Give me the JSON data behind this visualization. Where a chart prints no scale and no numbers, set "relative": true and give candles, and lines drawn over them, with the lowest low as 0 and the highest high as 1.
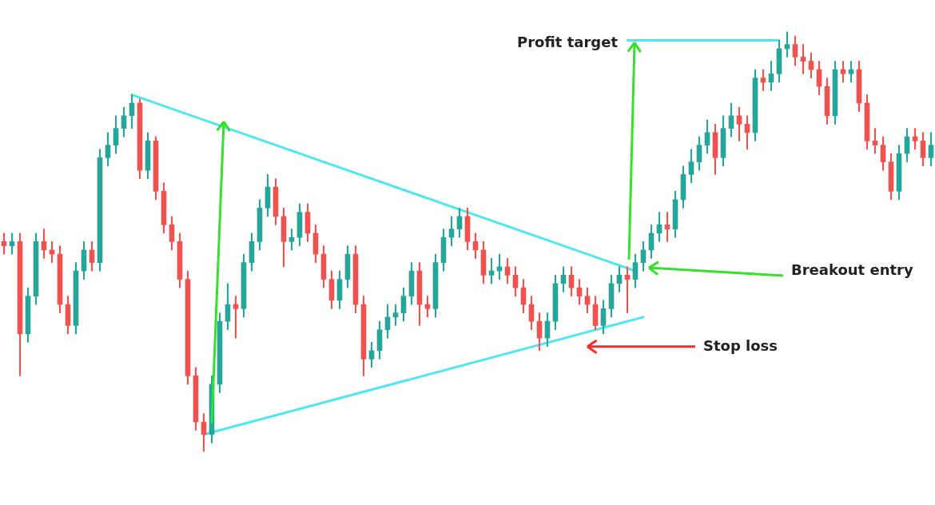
{
  "chart_data": {
    "type": "candlestick",
    "relative": true,
    "marker": "none",
    "categories": [
      null,
      null,
      null,
      null,
      null,
      null,
      null,
      null,
      null,
      null,
      null,
      null,
      null,
      null,
      null,
      null,
      null,
      null,
      null,
      null,
      null,
      null,
      null,
      null,
      null,
      null,
      null,
      null,
      null,
      null,
      null,
      null,
      null,
      null,
      null,
      null,
      null,
      null,
      null,
      null,
      null,
      null,
      null,
      null,
      null,
      null,
      null,
      null,
      null,
      null,
      null,
      null,
      null,
      null,
      null,
      null,
      null,
      null,
      null,
      null,
      null,
      null,
      null,
      null,
      null,
      null,
      null,
      null,
      null,
      null,
      null,
      null,
      null,
      null,
      null,
      null,
      null,
      null,
      null,
      null,
      null,
      null,
      null,
      null,
      null,
      null,
      null,
      null,
      null,
      null,
      null,
      null,
      null,
      null,
      null,
      null,
      null,
      null,
      null,
      null,
      null,
      null,
      null,
      null,
      null,
      null,
      null,
      null,
      null,
      null,
      null,
      null,
      null,
      null,
      null,
      null,
      null
    ],
    "ohlc": [
      [
        0.5,
        0.52,
        0.47,
        0.49
      ],
      [
        0.49,
        0.52,
        0.47,
        0.5
      ],
      [
        0.5,
        0.52,
        0.18,
        0.28
      ],
      [
        0.28,
        0.39,
        0.26,
        0.37
      ],
      [
        0.37,
        0.52,
        0.35,
        0.5
      ],
      [
        0.5,
        0.53,
        0.46,
        0.48
      ],
      [
        0.48,
        0.5,
        0.45,
        0.47
      ],
      [
        0.47,
        0.49,
        0.33,
        0.35
      ],
      [
        0.35,
        0.37,
        0.28,
        0.3
      ],
      [
        0.3,
        0.45,
        0.28,
        0.43
      ],
      [
        0.43,
        0.5,
        0.41,
        0.48
      ],
      [
        0.48,
        0.5,
        0.43,
        0.45
      ],
      [
        0.45,
        0.72,
        0.43,
        0.7
      ],
      [
        0.7,
        0.76,
        0.68,
        0.73
      ],
      [
        0.73,
        0.8,
        0.71,
        0.77
      ],
      [
        0.77,
        0.82,
        0.75,
        0.8
      ],
      [
        0.8,
        0.85,
        0.77,
        0.83
      ],
      [
        0.83,
        0.84,
        0.65,
        0.67
      ],
      [
        0.67,
        0.76,
        0.65,
        0.74
      ],
      [
        0.74,
        0.75,
        0.6,
        0.62
      ],
      [
        0.62,
        0.64,
        0.52,
        0.54
      ],
      [
        0.54,
        0.56,
        0.48,
        0.5
      ],
      [
        0.5,
        0.52,
        0.39,
        0.41
      ],
      [
        0.41,
        0.43,
        0.16,
        0.18
      ],
      [
        0.18,
        0.2,
        0.05,
        0.07
      ],
      [
        0.07,
        0.09,
        0,
        0.04
      ],
      [
        0.04,
        0.18,
        0.02,
        0.16
      ],
      [
        0.16,
        0.33,
        0.14,
        0.31
      ],
      [
        0.31,
        0.4,
        0.29,
        0.35
      ],
      [
        0.35,
        0.37,
        0.27,
        0.34
      ],
      [
        0.34,
        0.47,
        0.32,
        0.45
      ],
      [
        0.45,
        0.52,
        0.43,
        0.5
      ],
      [
        0.5,
        0.6,
        0.48,
        0.58
      ],
      [
        0.58,
        0.66,
        0.56,
        0.63
      ],
      [
        0.63,
        0.65,
        0.54,
        0.56
      ],
      [
        0.56,
        0.58,
        0.44,
        0.5
      ],
      [
        0.5,
        0.53,
        0.48,
        0.51
      ],
      [
        0.51,
        0.59,
        0.49,
        0.57
      ],
      [
        0.57,
        0.59,
        0.5,
        0.52
      ],
      [
        0.52,
        0.54,
        0.45,
        0.47
      ],
      [
        0.47,
        0.49,
        0.39,
        0.41
      ],
      [
        0.41,
        0.43,
        0.34,
        0.36
      ],
      [
        0.36,
        0.43,
        0.34,
        0.41
      ],
      [
        0.41,
        0.49,
        0.39,
        0.47
      ],
      [
        0.47,
        0.49,
        0.33,
        0.35
      ],
      [
        0.35,
        0.37,
        0.18,
        0.22
      ],
      [
        0.22,
        0.26,
        0.2,
        0.24
      ],
      [
        0.24,
        0.31,
        0.22,
        0.29
      ],
      [
        0.29,
        0.35,
        0.27,
        0.32
      ],
      [
        0.32,
        0.35,
        0.3,
        0.33
      ],
      [
        0.33,
        0.39,
        0.31,
        0.37
      ],
      [
        0.37,
        0.45,
        0.35,
        0.43
      ],
      [
        0.43,
        0.45,
        0.3,
        0.35
      ],
      [
        0.35,
        0.37,
        0.32,
        0.34
      ],
      [
        0.34,
        0.47,
        0.32,
        0.45
      ],
      [
        0.45,
        0.53,
        0.43,
        0.51
      ],
      [
        0.51,
        0.56,
        0.49,
        0.53
      ],
      [
        0.53,
        0.58,
        0.51,
        0.56
      ],
      [
        0.56,
        0.58,
        0.48,
        0.5
      ],
      [
        0.5,
        0.52,
        0.46,
        0.48
      ],
      [
        0.48,
        0.5,
        0.4,
        0.42
      ],
      [
        0.42,
        0.46,
        0.4,
        0.43
      ],
      [
        0.43,
        0.47,
        0.41,
        0.44
      ],
      [
        0.44,
        0.46,
        0.4,
        0.42
      ],
      [
        0.42,
        0.44,
        0.37,
        0.39
      ],
      [
        0.39,
        0.41,
        0.33,
        0.35
      ],
      [
        0.35,
        0.37,
        0.29,
        0.31
      ],
      [
        0.31,
        0.33,
        0.24,
        0.27
      ],
      [
        0.27,
        0.33,
        0.25,
        0.31
      ],
      [
        0.31,
        0.42,
        0.29,
        0.4
      ],
      [
        0.4,
        0.44,
        0.38,
        0.42
      ],
      [
        0.42,
        0.44,
        0.37,
        0.39
      ],
      [
        0.39,
        0.41,
        0.35,
        0.37
      ],
      [
        0.37,
        0.39,
        0.33,
        0.35
      ],
      [
        0.35,
        0.37,
        0.29,
        0.3
      ],
      [
        0.3,
        0.36,
        0.28,
        0.34
      ],
      [
        0.34,
        0.42,
        0.32,
        0.4
      ],
      [
        0.4,
        0.44,
        0.38,
        0.42
      ],
      [
        0.42,
        0.44,
        0.33,
        0.41
      ],
      [
        0.41,
        0.47,
        0.39,
        0.45
      ],
      [
        0.45,
        0.5,
        0.43,
        0.48
      ],
      [
        0.48,
        0.54,
        0.46,
        0.52
      ],
      [
        0.52,
        0.57,
        0.5,
        0.54
      ],
      [
        0.54,
        0.57,
        0.5,
        0.53
      ],
      [
        0.53,
        0.62,
        0.51,
        0.6
      ],
      [
        0.6,
        0.68,
        0.58,
        0.66
      ],
      [
        0.66,
        0.72,
        0.64,
        0.69
      ],
      [
        0.69,
        0.75,
        0.67,
        0.73
      ],
      [
        0.73,
        0.79,
        0.71,
        0.76
      ],
      [
        0.76,
        0.78,
        0.66,
        0.7
      ],
      [
        0.7,
        0.8,
        0.68,
        0.77
      ],
      [
        0.77,
        0.83,
        0.75,
        0.8
      ],
      [
        0.8,
        0.82,
        0.74,
        0.78
      ],
      [
        0.78,
        0.8,
        0.72,
        0.76
      ],
      [
        0.76,
        0.91,
        0.74,
        0.89
      ],
      [
        0.89,
        0.91,
        0.86,
        0.88
      ],
      [
        0.88,
        0.93,
        0.86,
        0.9
      ],
      [
        0.9,
        0.98,
        0.88,
        0.96
      ],
      [
        0.96,
        1,
        0.94,
        0.97
      ],
      [
        0.97,
        0.99,
        0.92,
        0.94
      ],
      [
        0.94,
        0.97,
        0.9,
        0.93
      ],
      [
        0.93,
        0.95,
        0.89,
        0.91
      ],
      [
        0.91,
        0.93,
        0.85,
        0.87
      ],
      [
        0.87,
        0.89,
        0.78,
        0.8
      ],
      [
        0.8,
        0.93,
        0.78,
        0.91
      ],
      [
        0.91,
        0.93,
        0.88,
        0.9
      ],
      [
        0.9,
        0.93,
        0.88,
        0.91
      ],
      [
        0.91,
        0.93,
        0.81,
        0.83
      ],
      [
        0.83,
        0.85,
        0.72,
        0.74
      ],
      [
        0.74,
        0.77,
        0.71,
        0.73
      ],
      [
        0.73,
        0.75,
        0.67,
        0.69
      ],
      [
        0.69,
        0.71,
        0.6,
        0.62
      ],
      [
        0.62,
        0.73,
        0.6,
        0.71
      ],
      [
        0.71,
        0.77,
        0.69,
        0.75
      ],
      [
        0.75,
        0.77,
        0.72,
        0.74
      ],
      [
        0.74,
        0.76,
        0.68,
        0.7
      ],
      [
        0.7,
        0.76,
        0.68,
        0.73
      ]
    ],
    "colors": [
      "#ef5350",
      "#26a69a",
      "#ef5350",
      "#26a69a",
      "#26a69a",
      "#ef5350",
      "#ef5350",
      "#ef5350",
      "#ef5350",
      "#26a69a",
      "#26a69a",
      "#ef5350",
      "#26a69a",
      "#26a69a",
      "#26a69a",
      "#26a69a",
      "#26a69a",
      "#ef5350",
      "#26a69a",
      "#ef5350",
      "#ef5350",
      "#ef5350",
      "#ef5350",
      "#ef5350",
      "#ef5350",
      "#ef5350",
      "#26a69a",
      "#26a69a",
      "#26a69a",
      "#ef5350",
      "#26a69a",
      "#26a69a",
      "#26a69a",
      "#26a69a",
      "#ef5350",
      "#ef5350",
      "#26a69a",
      "#26a69a",
      "#ef5350",
      "#ef5350",
      "#ef5350",
      "#ef5350",
      "#26a69a",
      "#26a69a",
      "#ef5350",
      "#ef5350",
      "#26a69a",
      "#26a69a",
      "#26a69a",
      "#26a69a",
      "#26a69a",
      "#26a69a",
      "#ef5350",
      "#ef5350",
      "#26a69a",
      "#26a69a",
      "#26a69a",
      "#26a69a",
      "#ef5350",
      "#ef5350",
      "#ef5350",
      "#26a69a",
      "#26a69a",
      "#ef5350",
      "#ef5350",
      "#ef5350",
      "#ef5350",
      "#ef5350",
      "#26a69a",
      "#26a69a",
      "#26a69a",
      "#ef5350",
      "#ef5350",
      "#ef5350",
      "#ef5350",
      "#26a69a",
      "#26a69a",
      "#26a69a",
      "#ef5350",
      "#26a69a",
      "#26a69a",
      "#26a69a",
      "#26a69a",
      "#ef5350",
      "#26a69a",
      "#26a69a",
      "#26a69a",
      "#26a69a",
      "#26a69a",
      "#ef5350",
      "#26a69a",
      "#26a69a",
      "#ef5350",
      "#ef5350",
      "#26a69a",
      "#ef5350",
      "#26a69a",
      "#26a69a",
      "#26a69a",
      "#ef5350",
      "#ef5350",
      "#ef5350",
      "#ef5350",
      "#ef5350",
      "#26a69a",
      "#ef5350",
      "#26a69a",
      "#ef5350",
      "#ef5350",
      "#ef5350",
      "#ef5350",
      "#ef5350",
      "#26a69a",
      "#26a69a",
      "#ef5350",
      "#ef5350",
      "#26a69a"
    ],
    "series": [
      {
        "type": "line",
        "color": "#4ee6f2",
        "values": [
          null,
          null,
          null,
          null,
          null,
          null,
          null,
          null,
          null,
          null,
          null,
          null,
          null,
          null,
          null,
          null,
          0.85,
          null,
          null,
          null,
          null,
          null,
          null,
          null,
          null,
          null,
          null,
          null,
          null,
          null,
          null,
          null,
          null,
          null,
          null,
          null,
          null,
          null,
          null,
          null,
          null,
          null,
          null,
          null,
          null,
          null,
          null,
          null,
          null,
          null,
          null,
          null,
          null,
          null,
          null,
          null,
          null,
          null,
          null,
          null,
          null,
          null,
          null,
          null,
          null,
          null,
          null,
          null,
          null,
          null,
          null,
          null,
          null,
          null,
          null,
          null,
          null,
          null,
          null,
          0.43,
          null,
          null,
          null,
          null,
          null,
          null,
          null,
          null,
          null,
          null,
          null,
          null,
          null,
          null,
          null,
          null,
          null,
          null,
          null,
          null,
          null,
          null,
          null,
          null,
          null,
          null,
          null,
          null,
          null,
          null,
          null,
          null,
          null,
          null,
          null,
          null,
          null
        ]
      },
      {
        "type": "line",
        "color": "#4ee6f2",
        "values": [
          null,
          null,
          null,
          null,
          null,
          null,
          null,
          null,
          null,
          null,
          null,
          null,
          null,
          null,
          null,
          null,
          null,
          null,
          null,
          null,
          null,
          null,
          null,
          null,
          null,
          0.04,
          null,
          null,
          null,
          null,
          null,
          null,
          null,
          null,
          null,
          null,
          null,
          null,
          null,
          null,
          null,
          null,
          null,
          null,
          null,
          null,
          null,
          null,
          null,
          null,
          null,
          null,
          null,
          null,
          null,
          null,
          null,
          null,
          null,
          null,
          null,
          null,
          null,
          null,
          null,
          null,
          null,
          null,
          null,
          null,
          null,
          null,
          null,
          null,
          null,
          null,
          null,
          null,
          null,
          null,
          0.32,
          null,
          null,
          null,
          null,
          null,
          null,
          null,
          null,
          null,
          null,
          null,
          null,
          null,
          null,
          null,
          null,
          null,
          null,
          null,
          null,
          null,
          null,
          null,
          null,
          null,
          null,
          null,
          null,
          null,
          null,
          null,
          null,
          null,
          null,
          null,
          null
        ]
      },
      {
        "type": "line",
        "color": "#4ee6f2",
        "values": [
          null,
          null,
          null,
          null,
          null,
          null,
          null,
          null,
          null,
          null,
          null,
          null,
          null,
          null,
          null,
          null,
          null,
          null,
          null,
          null,
          null,
          null,
          null,
          null,
          null,
          null,
          null,
          null,
          null,
          null,
          null,
          null,
          null,
          null,
          null,
          null,
          null,
          null,
          null,
          null,
          null,
          null,
          null,
          null,
          null,
          null,
          null,
          null,
          null,
          null,
          null,
          null,
          null,
          null,
          null,
          null,
          null,
          null,
          null,
          null,
          null,
          null,
          null,
          null,
          null,
          null,
          null,
          null,
          null,
          null,
          null,
          null,
          null,
          null,
          null,
          null,
          null,
          null,
          0.98,
          null,
          null,
          null,
          null,
          null,
          null,
          null,
          null,
          null,
          null,
          null,
          null,
          null,
          null,
          null,
          null,
          null,
          null,
          0.98,
          null,
          null,
          null,
          null,
          null,
          null,
          null,
          null,
          null,
          null,
          null,
          null,
          null,
          null,
          null,
          null,
          null,
          null,
          null
        ]
      }
    ],
    "annotations": [
      "Profit target",
      "Breakout entry",
      "Stop loss"
    ]
  }
}
